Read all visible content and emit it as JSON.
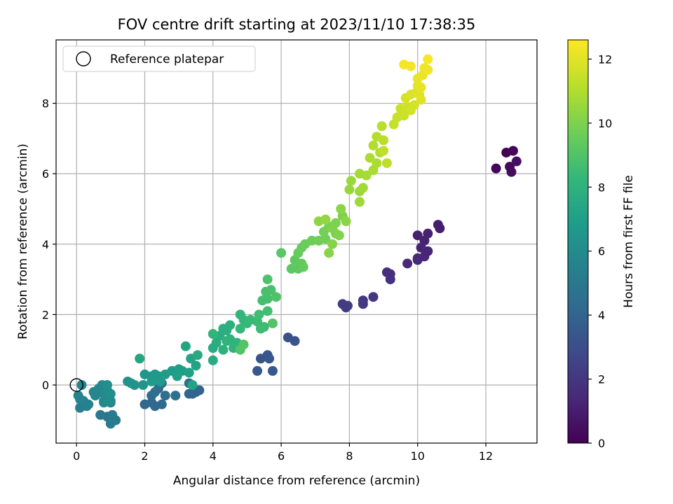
{
  "chart_data": {
    "type": "scatter",
    "title": "FOV centre drift starting at 2023/11/10 17:38:35",
    "xlabel": "Angular distance from reference (arcmin)",
    "ylabel": "Rotation from reference (arcmin)",
    "xlim": [
      -0.6,
      13.5
    ],
    "ylim": [
      -1.65,
      9.8
    ],
    "xticks": [
      0,
      2,
      4,
      6,
      8,
      10,
      12
    ],
    "yticks": [
      0,
      2,
      4,
      6,
      8
    ],
    "grid": true,
    "legend": {
      "position": "upper-left",
      "entries": [
        {
          "label": "Reference platepar",
          "marker": "open-circle"
        }
      ]
    },
    "reference_point": {
      "x": 0,
      "y": 0
    },
    "colorbar": {
      "label": "Hours from first FF file",
      "range": [
        0,
        12.6
      ],
      "ticks": [
        0,
        2,
        4,
        6,
        8,
        10,
        12
      ],
      "colormap": "viridis",
      "colors": [
        "#440154",
        "#482878",
        "#3e4989",
        "#31688e",
        "#26828e",
        "#1f9e89",
        "#35b779",
        "#6ece58",
        "#b5de2b",
        "#fde725"
      ]
    },
    "points": [
      {
        "x": 12.6,
        "y": 6.6,
        "h": 0.0
      },
      {
        "x": 12.8,
        "y": 6.65,
        "h": 0.1
      },
      {
        "x": 12.3,
        "y": 6.15,
        "h": 0.2
      },
      {
        "x": 12.7,
        "y": 6.2,
        "h": 0.3
      },
      {
        "x": 12.75,
        "y": 6.05,
        "h": 0.4
      },
      {
        "x": 12.9,
        "y": 6.35,
        "h": 0.5
      },
      {
        "x": 10.6,
        "y": 4.55,
        "h": 1.0
      },
      {
        "x": 10.65,
        "y": 4.45,
        "h": 1.05
      },
      {
        "x": 10.0,
        "y": 4.25,
        "h": 1.1
      },
      {
        "x": 10.3,
        "y": 4.3,
        "h": 1.15
      },
      {
        "x": 10.2,
        "y": 4.1,
        "h": 1.2
      },
      {
        "x": 10.1,
        "y": 3.9,
        "h": 1.25
      },
      {
        "x": 10.3,
        "y": 3.8,
        "h": 1.3
      },
      {
        "x": 10.2,
        "y": 3.65,
        "h": 1.35
      },
      {
        "x": 10.0,
        "y": 3.55,
        "h": 1.4
      },
      {
        "x": 9.7,
        "y": 3.45,
        "h": 1.45
      },
      {
        "x": 10.0,
        "y": 3.6,
        "h": 1.5
      },
      {
        "x": 9.1,
        "y": 3.2,
        "h": 1.7
      },
      {
        "x": 9.2,
        "y": 3.15,
        "h": 1.75
      },
      {
        "x": 9.2,
        "y": 3.0,
        "h": 1.8
      },
      {
        "x": 8.7,
        "y": 2.5,
        "h": 2.0
      },
      {
        "x": 8.4,
        "y": 2.4,
        "h": 2.05
      },
      {
        "x": 8.4,
        "y": 2.3,
        "h": 2.1
      },
      {
        "x": 7.8,
        "y": 2.3,
        "h": 2.2
      },
      {
        "x": 7.9,
        "y": 2.2,
        "h": 2.25
      },
      {
        "x": 7.95,
        "y": 2.25,
        "h": 2.3
      },
      {
        "x": 6.2,
        "y": 1.35,
        "h": 3.2
      },
      {
        "x": 6.4,
        "y": 1.25,
        "h": 3.25
      },
      {
        "x": 5.4,
        "y": 0.75,
        "h": 3.3
      },
      {
        "x": 5.6,
        "y": 0.85,
        "h": 3.35
      },
      {
        "x": 5.65,
        "y": 0.75,
        "h": 3.4
      },
      {
        "x": 5.3,
        "y": 0.4,
        "h": 3.45
      },
      {
        "x": 5.75,
        "y": 0.4,
        "h": 3.5
      },
      {
        "x": 3.5,
        "y": -0.2,
        "h": 3.9
      },
      {
        "x": 3.4,
        "y": -0.25,
        "h": 3.95
      },
      {
        "x": 3.6,
        "y": -0.15,
        "h": 4.0
      },
      {
        "x": 3.3,
        "y": -0.25,
        "h": 4.05
      },
      {
        "x": 2.0,
        "y": -0.55,
        "h": 4.2
      },
      {
        "x": 2.2,
        "y": -0.5,
        "h": 4.25
      },
      {
        "x": 2.3,
        "y": -0.6,
        "h": 4.3
      },
      {
        "x": 2.5,
        "y": -0.55,
        "h": 4.35
      },
      {
        "x": 2.2,
        "y": -0.3,
        "h": 4.4
      },
      {
        "x": 2.4,
        "y": -0.1,
        "h": 4.45
      },
      {
        "x": 2.6,
        "y": -0.3,
        "h": 4.5
      },
      {
        "x": 2.5,
        "y": 0.05,
        "h": 4.55
      },
      {
        "x": 2.9,
        "y": -0.3,
        "h": 4.6
      },
      {
        "x": 3.3,
        "y": 0.05,
        "h": 4.65
      },
      {
        "x": 2.3,
        "y": -0.2,
        "h": 4.7
      },
      {
        "x": 0.7,
        "y": -0.85,
        "h": 5.0
      },
      {
        "x": 0.9,
        "y": -0.9,
        "h": 5.05
      },
      {
        "x": 1.05,
        "y": -0.85,
        "h": 5.1
      },
      {
        "x": 1.15,
        "y": -1.0,
        "h": 5.15
      },
      {
        "x": 1.0,
        "y": -1.1,
        "h": 5.2
      },
      {
        "x": 0.8,
        "y": -0.45,
        "h": 5.25
      },
      {
        "x": 1.0,
        "y": -0.5,
        "h": 5.3
      },
      {
        "x": 0.1,
        "y": -0.65,
        "h": 5.4
      },
      {
        "x": 0.3,
        "y": -0.6,
        "h": 5.45
      },
      {
        "x": 0.2,
        "y": -0.45,
        "h": 5.5
      },
      {
        "x": 0.35,
        "y": -0.55,
        "h": 5.55
      },
      {
        "x": 0.1,
        "y": -0.4,
        "h": 5.6
      },
      {
        "x": 0.05,
        "y": -0.3,
        "h": 5.65
      },
      {
        "x": 0.15,
        "y": 0.0,
        "h": 5.7
      },
      {
        "x": 0.5,
        "y": -0.2,
        "h": 5.75
      },
      {
        "x": 0.55,
        "y": -0.3,
        "h": 5.8
      },
      {
        "x": 0.7,
        "y": -0.2,
        "h": 5.85
      },
      {
        "x": 0.65,
        "y": -0.1,
        "h": 5.9
      },
      {
        "x": 0.75,
        "y": 0.0,
        "h": 5.95
      },
      {
        "x": 0.85,
        "y": -0.3,
        "h": 6.0
      },
      {
        "x": 0.8,
        "y": -0.5,
        "h": 6.05
      },
      {
        "x": 1.0,
        "y": -0.45,
        "h": 6.1
      },
      {
        "x": 0.9,
        "y": -0.15,
        "h": 6.15
      },
      {
        "x": 0.9,
        "y": 0.0,
        "h": 6.2
      },
      {
        "x": 1.0,
        "y": -0.25,
        "h": 6.25
      },
      {
        "x": 1.5,
        "y": 0.1,
        "h": 6.4
      },
      {
        "x": 1.6,
        "y": 0.05,
        "h": 6.45
      },
      {
        "x": 1.7,
        "y": 0.0,
        "h": 6.5
      },
      {
        "x": 1.95,
        "y": 0.0,
        "h": 6.55
      },
      {
        "x": 2.0,
        "y": 0.3,
        "h": 6.6
      },
      {
        "x": 2.2,
        "y": 0.25,
        "h": 6.65
      },
      {
        "x": 2.3,
        "y": 0.3,
        "h": 6.7
      },
      {
        "x": 2.4,
        "y": 0.25,
        "h": 6.75
      },
      {
        "x": 2.45,
        "y": 0.1,
        "h": 6.8
      },
      {
        "x": 2.2,
        "y": 0.1,
        "h": 6.85
      },
      {
        "x": 2.6,
        "y": 0.3,
        "h": 6.9
      },
      {
        "x": 2.8,
        "y": 0.4,
        "h": 6.95
      },
      {
        "x": 3.0,
        "y": 0.45,
        "h": 7.0
      },
      {
        "x": 3.1,
        "y": 0.4,
        "h": 7.05
      },
      {
        "x": 2.95,
        "y": 0.25,
        "h": 7.1
      },
      {
        "x": 3.3,
        "y": 0.35,
        "h": 7.15
      },
      {
        "x": 3.4,
        "y": 0.0,
        "h": 7.2
      },
      {
        "x": 3.5,
        "y": 0.55,
        "h": 7.25
      },
      {
        "x": 3.35,
        "y": 0.75,
        "h": 7.3
      },
      {
        "x": 3.2,
        "y": 1.1,
        "h": 7.35
      },
      {
        "x": 1.85,
        "y": 0.75,
        "h": 7.4
      },
      {
        "x": 3.55,
        "y": 0.85,
        "h": 7.6
      },
      {
        "x": 4.0,
        "y": 0.7,
        "h": 7.65
      },
      {
        "x": 4.0,
        "y": 1.05,
        "h": 7.7
      },
      {
        "x": 4.1,
        "y": 1.2,
        "h": 7.75
      },
      {
        "x": 4.2,
        "y": 1.4,
        "h": 7.8
      },
      {
        "x": 4.4,
        "y": 1.55,
        "h": 7.85
      },
      {
        "x": 4.3,
        "y": 1.6,
        "h": 7.9
      },
      {
        "x": 4.5,
        "y": 1.7,
        "h": 7.95
      },
      {
        "x": 4.3,
        "y": 1.0,
        "h": 8.0
      },
      {
        "x": 4.5,
        "y": 1.3,
        "h": 8.05
      },
      {
        "x": 4.6,
        "y": 1.05,
        "h": 8.1
      },
      {
        "x": 4.7,
        "y": 1.2,
        "h": 8.15
      },
      {
        "x": 4.4,
        "y": 1.25,
        "h": 8.2
      },
      {
        "x": 4.0,
        "y": 1.45,
        "h": 8.25
      },
      {
        "x": 4.8,
        "y": 2.0,
        "h": 8.3
      },
      {
        "x": 4.9,
        "y": 1.85,
        "h": 8.35
      },
      {
        "x": 5.0,
        "y": 1.75,
        "h": 8.4
      },
      {
        "x": 4.8,
        "y": 1.6,
        "h": 8.45
      },
      {
        "x": 5.1,
        "y": 1.85,
        "h": 8.5
      },
      {
        "x": 5.3,
        "y": 1.8,
        "h": 8.55
      },
      {
        "x": 5.4,
        "y": 1.6,
        "h": 8.6
      },
      {
        "x": 5.5,
        "y": 1.65,
        "h": 8.65
      },
      {
        "x": 5.35,
        "y": 2.0,
        "h": 8.7
      },
      {
        "x": 5.6,
        "y": 2.1,
        "h": 8.75
      },
      {
        "x": 5.45,
        "y": 2.4,
        "h": 8.8
      },
      {
        "x": 5.6,
        "y": 2.45,
        "h": 8.85
      },
      {
        "x": 5.55,
        "y": 2.65,
        "h": 8.9
      },
      {
        "x": 5.7,
        "y": 2.7,
        "h": 8.95
      },
      {
        "x": 5.6,
        "y": 3.0,
        "h": 9.0
      },
      {
        "x": 5.85,
        "y": 2.5,
        "h": 9.05
      },
      {
        "x": 5.75,
        "y": 1.75,
        "h": 9.1
      },
      {
        "x": 4.8,
        "y": 1.0,
        "h": 9.15
      },
      {
        "x": 4.9,
        "y": 1.15,
        "h": 9.2
      },
      {
        "x": 6.0,
        "y": 3.75,
        "h": 9.3
      },
      {
        "x": 6.3,
        "y": 3.3,
        "h": 9.35
      },
      {
        "x": 6.5,
        "y": 3.3,
        "h": 9.4
      },
      {
        "x": 6.4,
        "y": 3.55,
        "h": 9.45
      },
      {
        "x": 6.6,
        "y": 3.45,
        "h": 9.5
      },
      {
        "x": 6.65,
        "y": 3.35,
        "h": 9.55
      },
      {
        "x": 6.5,
        "y": 3.75,
        "h": 9.6
      },
      {
        "x": 6.6,
        "y": 3.9,
        "h": 9.65
      },
      {
        "x": 6.7,
        "y": 4.0,
        "h": 9.7
      },
      {
        "x": 6.9,
        "y": 4.1,
        "h": 9.75
      },
      {
        "x": 7.1,
        "y": 4.1,
        "h": 9.8
      },
      {
        "x": 7.3,
        "y": 4.15,
        "h": 9.85
      },
      {
        "x": 7.25,
        "y": 4.35,
        "h": 9.9
      },
      {
        "x": 7.4,
        "y": 4.5,
        "h": 9.95
      },
      {
        "x": 7.6,
        "y": 4.3,
        "h": 10.0
      },
      {
        "x": 7.6,
        "y": 4.6,
        "h": 10.05
      },
      {
        "x": 7.8,
        "y": 4.8,
        "h": 10.1
      },
      {
        "x": 7.5,
        "y": 4.45,
        "h": 10.15
      },
      {
        "x": 7.7,
        "y": 4.25,
        "h": 10.2
      },
      {
        "x": 7.5,
        "y": 4.0,
        "h": 10.25
      },
      {
        "x": 7.4,
        "y": 3.75,
        "h": 10.3
      },
      {
        "x": 7.75,
        "y": 5.0,
        "h": 10.35
      },
      {
        "x": 7.9,
        "y": 4.65,
        "h": 10.4
      },
      {
        "x": 7.1,
        "y": 4.65,
        "h": 10.45
      },
      {
        "x": 7.3,
        "y": 4.7,
        "h": 10.5
      },
      {
        "x": 8.0,
        "y": 5.55,
        "h": 10.6
      },
      {
        "x": 8.05,
        "y": 5.8,
        "h": 10.65
      },
      {
        "x": 8.3,
        "y": 5.5,
        "h": 10.7
      },
      {
        "x": 8.3,
        "y": 5.2,
        "h": 10.75
      },
      {
        "x": 8.4,
        "y": 5.6,
        "h": 10.8
      },
      {
        "x": 8.3,
        "y": 6.0,
        "h": 10.85
      },
      {
        "x": 8.5,
        "y": 5.95,
        "h": 10.9
      },
      {
        "x": 8.7,
        "y": 6.1,
        "h": 10.95
      },
      {
        "x": 8.6,
        "y": 6.45,
        "h": 11.0
      },
      {
        "x": 8.8,
        "y": 6.3,
        "h": 11.05
      },
      {
        "x": 8.9,
        "y": 6.6,
        "h": 11.1
      },
      {
        "x": 8.7,
        "y": 6.8,
        "h": 11.15
      },
      {
        "x": 8.8,
        "y": 7.05,
        "h": 11.2
      },
      {
        "x": 9.0,
        "y": 6.95,
        "h": 11.25
      },
      {
        "x": 8.95,
        "y": 7.35,
        "h": 11.3
      },
      {
        "x": 9.1,
        "y": 6.3,
        "h": 11.35
      },
      {
        "x": 9.0,
        "y": 6.65,
        "h": 11.4
      },
      {
        "x": 9.3,
        "y": 7.4,
        "h": 11.5
      },
      {
        "x": 9.4,
        "y": 7.6,
        "h": 11.55
      },
      {
        "x": 9.5,
        "y": 7.85,
        "h": 11.6
      },
      {
        "x": 9.6,
        "y": 7.65,
        "h": 11.65
      },
      {
        "x": 9.7,
        "y": 7.9,
        "h": 11.7
      },
      {
        "x": 9.8,
        "y": 7.8,
        "h": 11.75
      },
      {
        "x": 9.9,
        "y": 7.95,
        "h": 11.8
      },
      {
        "x": 9.65,
        "y": 8.15,
        "h": 11.85
      },
      {
        "x": 9.8,
        "y": 8.25,
        "h": 11.9
      },
      {
        "x": 9.95,
        "y": 8.3,
        "h": 11.95
      },
      {
        "x": 10.1,
        "y": 8.1,
        "h": 12.0
      },
      {
        "x": 10.05,
        "y": 8.25,
        "h": 12.05
      },
      {
        "x": 10.0,
        "y": 8.5,
        "h": 12.1
      },
      {
        "x": 10.1,
        "y": 8.45,
        "h": 12.15
      },
      {
        "x": 10.0,
        "y": 8.7,
        "h": 12.2
      },
      {
        "x": 10.15,
        "y": 8.8,
        "h": 12.25
      },
      {
        "x": 10.2,
        "y": 9.0,
        "h": 12.3
      },
      {
        "x": 10.3,
        "y": 8.95,
        "h": 12.35
      },
      {
        "x": 9.8,
        "y": 9.05,
        "h": 12.4
      },
      {
        "x": 10.3,
        "y": 9.25,
        "h": 12.45
      },
      {
        "x": 9.6,
        "y": 9.1,
        "h": 12.5
      }
    ]
  }
}
